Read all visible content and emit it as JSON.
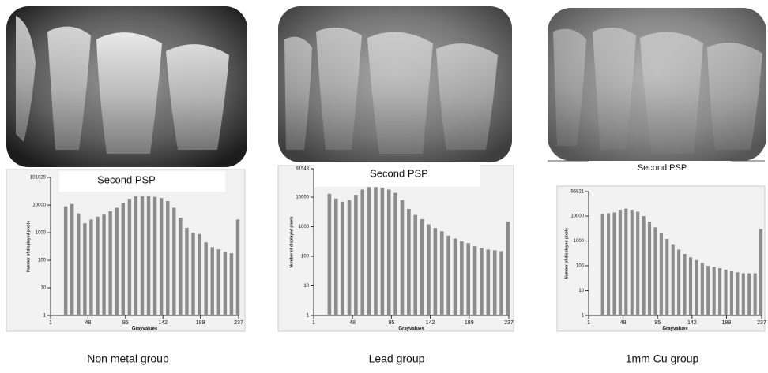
{
  "chart_data": [
    {
      "type": "bar",
      "title": "Second PSP",
      "caption": "Non metal group",
      "x_label": "Grayvalues",
      "y_label": "Number of displayed pixels",
      "log_y": true,
      "color": "#8c8c8c",
      "x": [
        20,
        28,
        36,
        44,
        52,
        60,
        68,
        76,
        84,
        92,
        100,
        108,
        116,
        124,
        132,
        140,
        148,
        156,
        164,
        172,
        180,
        188,
        196,
        204,
        212,
        220,
        228,
        236
      ],
      "values": [
        9000,
        11000,
        5000,
        2200,
        3000,
        3800,
        4500,
        6000,
        8000,
        12000,
        17000,
        21000,
        21000,
        21000,
        20000,
        18000,
        14000,
        8000,
        3500,
        1500,
        1000,
        900,
        450,
        300,
        250,
        200,
        180,
        3000
      ],
      "xlim": [
        1,
        237
      ],
      "xticks": [
        1,
        48,
        95,
        142,
        189,
        237
      ],
      "ylim": [
        1,
        101029
      ],
      "yticks": [
        1,
        10,
        100,
        1000,
        10000,
        101029
      ]
    },
    {
      "type": "bar",
      "title": "Second PSP",
      "caption": "Lead group",
      "x_label": "Grayvalues",
      "y_label": "Number of displayed pixels",
      "log_y": true,
      "color": "#8c8c8c",
      "x": [
        20,
        28,
        36,
        44,
        52,
        60,
        68,
        76,
        84,
        92,
        100,
        108,
        116,
        124,
        132,
        140,
        148,
        156,
        164,
        172,
        180,
        188,
        196,
        204,
        212,
        220,
        228,
        236
      ],
      "values": [
        13000,
        9000,
        7000,
        8000,
        12000,
        18000,
        22000,
        22000,
        21000,
        18000,
        14000,
        8000,
        4000,
        2500,
        1800,
        1200,
        900,
        700,
        500,
        400,
        320,
        280,
        220,
        190,
        170,
        160,
        150,
        1500
      ],
      "xlim": [
        1,
        237
      ],
      "xticks": [
        1,
        48,
        95,
        142,
        189,
        237
      ],
      "ylim": [
        1,
        91543
      ],
      "yticks": [
        1,
        10,
        100,
        1000,
        10000,
        91543
      ]
    },
    {
      "type": "bar",
      "title": "Second PSP",
      "caption": "1mm Cu group",
      "x_label": "Grayvalues",
      "y_label": "Number of displayed pixels",
      "log_y": true,
      "color": "#8c8c8c",
      "x": [
        20,
        28,
        36,
        44,
        52,
        60,
        68,
        76,
        84,
        92,
        100,
        108,
        116,
        124,
        132,
        140,
        148,
        156,
        164,
        172,
        180,
        188,
        196,
        204,
        212,
        220,
        228,
        236
      ],
      "values": [
        12000,
        13000,
        14000,
        18000,
        20000,
        18000,
        15000,
        10000,
        6000,
        3500,
        2000,
        1200,
        700,
        450,
        300,
        220,
        170,
        130,
        100,
        90,
        80,
        70,
        60,
        55,
        50,
        50,
        50,
        3000
      ],
      "xlim": [
        1,
        237
      ],
      "xticks": [
        1,
        48,
        95,
        142,
        189,
        237
      ],
      "ylim": [
        1,
        96821
      ],
      "yticks": [
        1,
        10,
        100,
        1000,
        10000,
        96821
      ]
    }
  ]
}
